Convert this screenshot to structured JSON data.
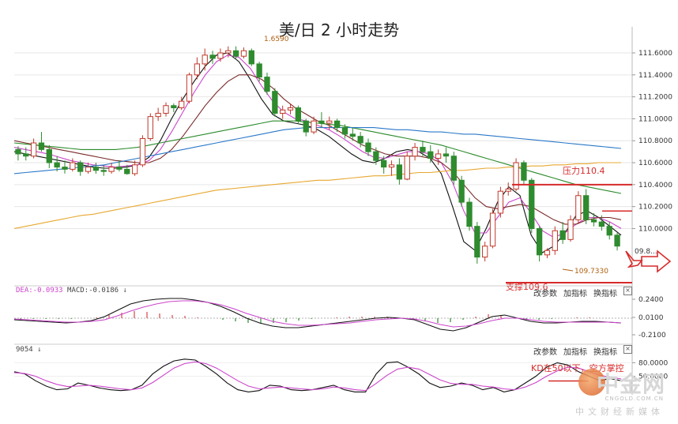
{
  "chart_data": {
    "type": "candlestick",
    "title": "美/日 2 小时走势",
    "price_axis": {
      "ticks": [
        "111.6000",
        "111.4000",
        "111.2000",
        "111.0000",
        "110.8000",
        "110.6000",
        "110.4000",
        "110.2000",
        "110.0000"
      ],
      "ylim": [
        109.55,
        111.78
      ],
      "current_price_label": "09.8..."
    },
    "candles": [
      [
        110.72,
        110.75,
        110.62,
        110.68
      ],
      [
        110.68,
        110.74,
        110.62,
        110.66
      ],
      [
        110.66,
        110.82,
        110.64,
        110.78
      ],
      [
        110.78,
        110.88,
        110.7,
        110.72
      ],
      [
        110.72,
        110.76,
        110.55,
        110.6
      ],
      [
        110.6,
        110.66,
        110.52,
        110.56
      ],
      [
        110.56,
        110.62,
        110.5,
        110.54
      ],
      [
        110.54,
        110.64,
        110.52,
        110.6
      ],
      [
        110.6,
        110.62,
        110.48,
        110.52
      ],
      [
        110.52,
        110.6,
        110.5,
        110.56
      ],
      [
        110.56,
        110.6,
        110.5,
        110.53
      ],
      [
        110.53,
        110.58,
        110.48,
        110.52
      ],
      [
        110.52,
        110.6,
        110.5,
        110.56
      ],
      [
        110.56,
        110.62,
        110.52,
        110.54
      ],
      [
        110.54,
        110.58,
        110.49,
        110.5
      ],
      [
        110.5,
        110.62,
        110.48,
        110.58
      ],
      [
        110.58,
        110.85,
        110.56,
        110.82
      ],
      [
        110.82,
        111.05,
        110.8,
        111.02
      ],
      [
        111.02,
        111.1,
        110.98,
        111.05
      ],
      [
        111.05,
        111.15,
        111.02,
        111.12
      ],
      [
        111.12,
        111.14,
        111.06,
        111.1
      ],
      [
        111.1,
        111.2,
        111.08,
        111.16
      ],
      [
        111.16,
        111.42,
        111.14,
        111.4
      ],
      [
        111.4,
        111.56,
        111.36,
        111.5
      ],
      [
        111.5,
        111.64,
        111.44,
        111.58
      ],
      [
        111.58,
        111.62,
        111.5,
        111.55
      ],
      [
        111.55,
        111.64,
        111.52,
        111.6
      ],
      [
        111.6,
        111.66,
        111.56,
        111.62
      ],
      [
        111.62,
        111.66,
        111.54,
        111.57
      ],
      [
        111.57,
        111.65,
        111.55,
        111.62
      ],
      [
        111.62,
        111.64,
        111.48,
        111.5
      ],
      [
        111.5,
        111.52,
        111.34,
        111.38
      ],
      [
        111.38,
        111.42,
        111.22,
        111.25
      ],
      [
        111.25,
        111.28,
        111.02,
        111.05
      ],
      [
        111.05,
        111.12,
        111.0,
        111.08
      ],
      [
        111.08,
        111.14,
        111.04,
        111.1
      ],
      [
        111.1,
        111.12,
        110.95,
        110.98
      ],
      [
        110.98,
        111.0,
        110.84,
        110.88
      ],
      [
        110.88,
        111.02,
        110.86,
        110.98
      ],
      [
        110.98,
        111.06,
        110.92,
        110.96
      ],
      [
        110.96,
        111.02,
        110.9,
        110.98
      ],
      [
        110.98,
        111.0,
        110.88,
        110.92
      ],
      [
        110.92,
        110.95,
        110.82,
        110.86
      ],
      [
        110.86,
        110.92,
        110.8,
        110.84
      ],
      [
        110.84,
        110.88,
        110.74,
        110.78
      ],
      [
        110.78,
        110.82,
        110.66,
        110.7
      ],
      [
        110.7,
        110.74,
        110.58,
        110.62
      ],
      [
        110.62,
        110.66,
        110.5,
        110.56
      ],
      [
        110.56,
        110.62,
        110.48,
        110.58
      ],
      [
        110.58,
        110.64,
        110.4,
        110.45
      ],
      [
        110.45,
        110.7,
        110.44,
        110.66
      ],
      [
        110.66,
        110.78,
        110.62,
        110.74
      ],
      [
        110.74,
        110.8,
        110.66,
        110.7
      ],
      [
        110.7,
        110.76,
        110.6,
        110.64
      ],
      [
        110.64,
        110.72,
        110.58,
        110.68
      ],
      [
        110.68,
        110.74,
        110.6,
        110.66
      ],
      [
        110.66,
        110.7,
        110.4,
        110.44
      ],
      [
        110.44,
        110.48,
        110.2,
        110.24
      ],
      [
        110.24,
        110.28,
        109.98,
        110.02
      ],
      [
        110.02,
        110.06,
        109.68,
        109.74
      ],
      [
        109.74,
        109.88,
        109.7,
        109.84
      ],
      [
        109.84,
        110.18,
        109.82,
        110.14
      ],
      [
        110.14,
        110.38,
        110.1,
        110.34
      ],
      [
        110.34,
        110.42,
        110.3,
        110.36
      ],
      [
        110.36,
        110.64,
        110.34,
        110.6
      ],
      [
        110.6,
        110.62,
        110.4,
        110.44
      ],
      [
        110.44,
        110.46,
        109.96,
        110.0
      ],
      [
        110.0,
        110.02,
        109.7,
        109.76
      ],
      [
        109.76,
        109.82,
        109.73,
        109.8
      ],
      [
        109.8,
        110.02,
        109.76,
        109.98
      ],
      [
        109.98,
        110.06,
        109.86,
        109.9
      ],
      [
        109.9,
        110.12,
        109.88,
        110.08
      ],
      [
        110.08,
        110.34,
        110.04,
        110.3
      ],
      [
        110.3,
        110.36,
        110.04,
        110.08
      ],
      [
        110.08,
        110.14,
        110.02,
        110.06
      ],
      [
        110.06,
        110.12,
        109.98,
        110.02
      ],
      [
        110.02,
        110.06,
        109.9,
        109.94
      ],
      [
        109.94,
        109.96,
        109.8,
        109.84
      ]
    ],
    "moving_averages": [
      {
        "color": "#111111",
        "values": [
          110.7,
          110.68,
          110.66,
          110.64,
          110.62,
          110.6,
          110.58,
          110.56,
          110.55,
          110.55,
          110.56,
          110.58,
          110.65,
          110.8,
          111.0,
          111.18,
          111.34,
          111.48,
          111.58,
          111.6,
          111.52,
          111.36,
          111.18,
          111.04,
          110.98,
          110.96,
          110.94,
          110.9,
          110.84,
          110.76,
          110.68,
          110.62,
          110.6,
          110.64,
          110.7,
          110.72,
          110.7,
          110.64,
          110.5,
          110.2,
          109.88,
          109.8,
          110.0,
          110.24,
          110.38,
          110.3,
          109.94,
          109.78,
          109.84,
          109.96,
          110.12,
          110.16,
          110.1,
          110.02,
          109.94
        ]
      },
      {
        "color": "#cc44cc",
        "values": [
          110.74,
          110.72,
          110.7,
          110.68,
          110.65,
          110.62,
          110.6,
          110.58,
          110.57,
          110.56,
          110.57,
          110.58,
          110.62,
          110.72,
          110.88,
          111.06,
          111.24,
          111.4,
          111.52,
          111.58,
          111.56,
          111.46,
          111.3,
          111.16,
          111.06,
          111.0,
          110.98,
          110.94,
          110.9,
          110.84,
          110.77,
          110.7,
          110.65,
          110.64,
          110.67,
          110.7,
          110.7,
          110.68,
          110.6,
          110.42,
          110.16,
          109.96,
          109.96,
          110.1,
          110.24,
          110.28,
          110.14,
          109.98,
          109.92,
          109.96,
          110.04,
          110.1,
          110.1,
          110.06,
          110.0
        ]
      },
      {
        "color": "#7a2a2a",
        "values": [
          110.8,
          110.78,
          110.76,
          110.74,
          110.72,
          110.7,
          110.68,
          110.66,
          110.64,
          110.62,
          110.61,
          110.6,
          110.6,
          110.64,
          110.72,
          110.84,
          110.98,
          111.12,
          111.24,
          111.34,
          111.4,
          111.4,
          111.36,
          111.28,
          111.18,
          111.1,
          111.04,
          110.98,
          110.94,
          110.88,
          110.82,
          110.76,
          110.72,
          110.68,
          110.66,
          110.66,
          110.66,
          110.64,
          110.6,
          110.52,
          110.4,
          110.28,
          110.2,
          110.18,
          110.2,
          110.22,
          110.2,
          110.14,
          110.08,
          110.04,
          110.04,
          110.08,
          110.1,
          110.1,
          110.08
        ]
      },
      {
        "color": "#2b8a2b",
        "values": [
          110.78,
          110.77,
          110.76,
          110.75,
          110.74,
          110.73,
          110.72,
          110.72,
          110.72,
          110.72,
          110.73,
          110.74,
          110.76,
          110.78,
          110.8,
          110.82,
          110.84,
          110.86,
          110.88,
          110.9,
          110.92,
          110.94,
          110.96,
          110.98,
          110.98,
          110.98,
          110.97,
          110.96,
          110.95,
          110.94,
          110.92,
          110.9,
          110.88,
          110.86,
          110.84,
          110.82,
          110.8,
          110.78,
          110.76,
          110.73,
          110.7,
          110.67,
          110.64,
          110.61,
          110.58,
          110.55,
          110.52,
          110.49,
          110.46,
          110.43,
          110.4,
          110.38,
          110.36,
          110.34,
          110.32
        ]
      },
      {
        "color": "#2a78c8",
        "values": [
          110.5,
          110.51,
          110.52,
          110.53,
          110.54,
          110.55,
          110.56,
          110.57,
          110.58,
          110.6,
          110.62,
          110.64,
          110.66,
          110.68,
          110.7,
          110.72,
          110.74,
          110.76,
          110.78,
          110.8,
          110.82,
          110.84,
          110.86,
          110.88,
          110.9,
          110.91,
          110.92,
          110.92,
          110.92,
          110.92,
          110.92,
          110.92,
          110.92,
          110.91,
          110.9,
          110.9,
          110.89,
          110.88,
          110.88,
          110.87,
          110.86,
          110.86,
          110.85,
          110.84,
          110.83,
          110.82,
          110.81,
          110.8,
          110.79,
          110.78,
          110.77,
          110.76,
          110.75,
          110.74,
          110.73
        ]
      },
      {
        "color": "#e8a830",
        "values": [
          110.0,
          110.02,
          110.04,
          110.06,
          110.08,
          110.1,
          110.12,
          110.13,
          110.15,
          110.17,
          110.19,
          110.21,
          110.23,
          110.25,
          110.27,
          110.29,
          110.31,
          110.33,
          110.35,
          110.36,
          110.37,
          110.38,
          110.39,
          110.4,
          110.41,
          110.42,
          110.43,
          110.44,
          110.44,
          110.45,
          110.46,
          110.47,
          110.48,
          110.48,
          110.49,
          110.5,
          110.51,
          110.51,
          110.52,
          110.53,
          110.53,
          110.54,
          110.55,
          110.55,
          110.56,
          110.56,
          110.57,
          110.57,
          110.58,
          110.58,
          110.59,
          110.59,
          110.6,
          110.6,
          110.6
        ]
      }
    ],
    "annotations": {
      "high_label": "1.6590",
      "low_label": "109.7330",
      "resistance_label": "压力110.4",
      "resistance_value": 110.4,
      "support_label": "支撑109.6",
      "support_value": 109.6
    },
    "macd": {
      "label_dea": "DEA:-0.0933",
      "label_macd": "MACD:-0.0186",
      "arrow": "↓",
      "ticks": [
        "0.2400",
        "0.0100",
        "-0.2100"
      ],
      "ylim": [
        -0.25,
        0.3
      ],
      "dif": [
        -0.02,
        -0.03,
        -0.04,
        -0.05,
        -0.06,
        -0.05,
        -0.03,
        0.02,
        0.1,
        0.18,
        0.22,
        0.24,
        0.25,
        0.25,
        0.23,
        0.2,
        0.15,
        0.08,
        0.0,
        -0.06,
        -0.1,
        -0.12,
        -0.12,
        -0.1,
        -0.08,
        -0.06,
        -0.04,
        -0.02,
        0.0,
        0.01,
        0.0,
        -0.02,
        -0.08,
        -0.14,
        -0.16,
        -0.12,
        -0.05,
        0.02,
        0.04,
        0.0,
        -0.04,
        -0.06,
        -0.06,
        -0.05,
        -0.04,
        -0.04,
        -0.05,
        -0.06
      ],
      "dea": [
        -0.01,
        -0.02,
        -0.03,
        -0.04,
        -0.05,
        -0.05,
        -0.04,
        -0.02,
        0.03,
        0.09,
        0.14,
        0.18,
        0.21,
        0.22,
        0.22,
        0.2,
        0.17,
        0.12,
        0.06,
        0.01,
        -0.04,
        -0.07,
        -0.09,
        -0.09,
        -0.08,
        -0.07,
        -0.06,
        -0.04,
        -0.02,
        -0.01,
        0.0,
        -0.01,
        -0.04,
        -0.08,
        -0.11,
        -0.1,
        -0.07,
        -0.03,
        0.0,
        0.0,
        -0.02,
        -0.04,
        -0.05,
        -0.05,
        -0.05,
        -0.05,
        -0.05,
        -0.06
      ],
      "hist": [
        -0.01,
        -0.01,
        -0.01,
        -0.01,
        -0.01,
        0.0,
        0.01,
        0.04,
        0.07,
        0.09,
        0.08,
        0.06,
        0.04,
        0.03,
        0.01,
        0.0,
        -0.02,
        -0.04,
        -0.06,
        -0.07,
        -0.06,
        -0.05,
        -0.03,
        -0.01,
        0.0,
        0.01,
        0.02,
        0.02,
        0.02,
        0.02,
        0.0,
        -0.01,
        -0.04,
        -0.06,
        -0.05,
        -0.02,
        0.02,
        0.05,
        0.04,
        0.0,
        -0.02,
        -0.02,
        -0.01,
        0.0,
        0.01,
        0.01,
        0.0,
        0.0
      ]
    },
    "kdj": {
      "label": "9054",
      "arrow": "↓",
      "ticks": [
        "80.0000",
        "50.0000"
      ],
      "ylim": [
        0,
        100
      ],
      "k": [
        60,
        55,
        40,
        28,
        20,
        22,
        35,
        30,
        24,
        20,
        18,
        20,
        30,
        55,
        72,
        84,
        88,
        86,
        72,
        55,
        35,
        20,
        15,
        18,
        30,
        28,
        20,
        18,
        20,
        25,
        30,
        20,
        15,
        15,
        55,
        80,
        82,
        70,
        55,
        35,
        25,
        28,
        35,
        30,
        20,
        25,
        15,
        20,
        35,
        50,
        70,
        80,
        75,
        60,
        50,
        40,
        45,
        40
      ],
      "d": [
        58,
        56,
        50,
        40,
        32,
        27,
        28,
        30,
        28,
        25,
        22,
        20,
        24,
        36,
        52,
        68,
        78,
        82,
        78,
        68,
        54,
        40,
        28,
        22,
        24,
        26,
        24,
        22,
        20,
        22,
        26,
        24,
        20,
        18,
        34,
        52,
        66,
        70,
        66,
        54,
        42,
        34,
        32,
        32,
        28,
        26,
        22,
        20,
        26,
        36,
        50,
        62,
        70,
        68,
        60,
        52,
        48,
        44
      ]
    },
    "kdj_annotation": "KD在50以下，空方掌控",
    "toolbar": {
      "params": "改参数",
      "add": "加指标",
      "switch": "换指标",
      "close": "×"
    },
    "watermark": {
      "name": "中金网",
      "url": "CNGOLD.COM.CN",
      "slogan": "中文财经新媒体"
    }
  }
}
